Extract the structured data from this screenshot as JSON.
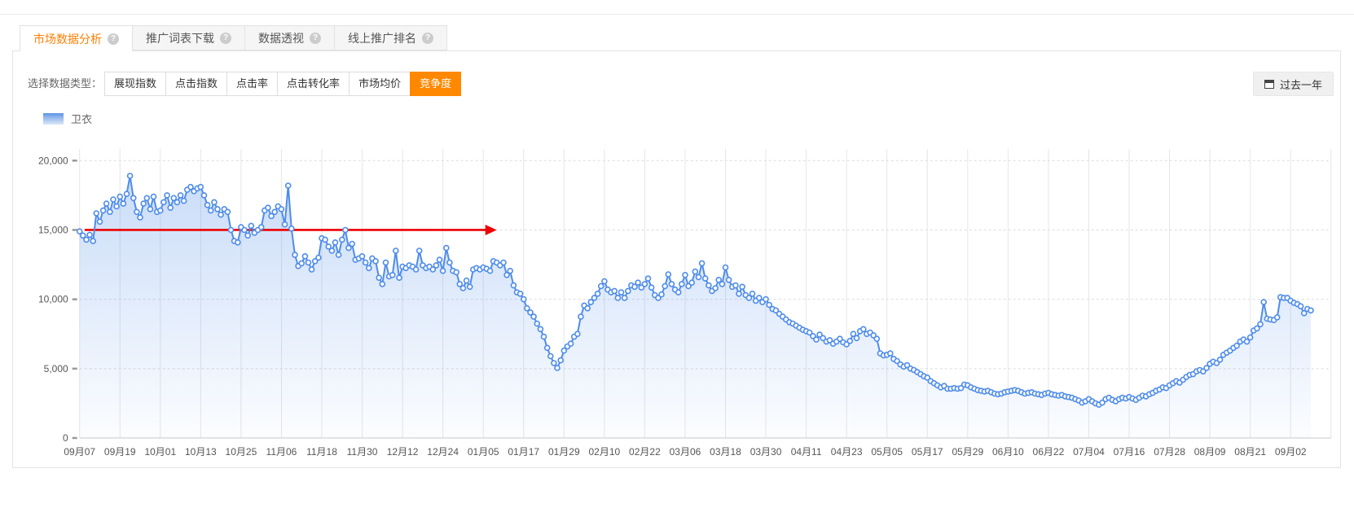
{
  "tabs": [
    {
      "label": "市场数据分析",
      "active": true
    },
    {
      "label": "推广词表下载",
      "active": false
    },
    {
      "label": "数据透视",
      "active": false
    },
    {
      "label": "线上推广排名",
      "active": false
    }
  ],
  "icons": {
    "help_glyph": "?"
  },
  "controls": {
    "label": "选择数据类型：",
    "type_buttons": [
      {
        "label": "展现指数",
        "active": false
      },
      {
        "label": "点击指数",
        "active": false
      },
      {
        "label": "点击率",
        "active": false
      },
      {
        "label": "点击转化率",
        "active": false
      },
      {
        "label": "市场均价",
        "active": false
      },
      {
        "label": "竞争度",
        "active": true
      }
    ],
    "date_range": {
      "label": "过去一年"
    }
  },
  "legend": {
    "series_label": "卫衣"
  },
  "colors": {
    "accent_orange": "#ff8800",
    "tab_active_text": "#ff7e00",
    "line_blue": "#4e8cea",
    "annotation_red": "#ee0000",
    "grid_vertical": "#e6e6e6",
    "grid_dashed": "#dcdcdc",
    "axis_text": "#555555"
  },
  "chart_data": {
    "type": "area",
    "title": "",
    "xlabel": "",
    "ylabel": "",
    "ylim": [
      0,
      20000
    ],
    "y_tick_labels": [
      "0",
      "5,000",
      "10,000",
      "15,000",
      "20,000"
    ],
    "y_tick_values": [
      0,
      5000,
      10000,
      15000,
      20000
    ],
    "x_tick_labels": [
      "09月07",
      "09月19",
      "10月01",
      "10月13",
      "10月25",
      "11月06",
      "11月18",
      "11月30",
      "12月12",
      "12月24",
      "01月05",
      "01月17",
      "01月29",
      "02月10",
      "02月22",
      "03月06",
      "03月18",
      "03月30",
      "04月11",
      "04月23",
      "05月05",
      "05月17",
      "05月29",
      "06月10",
      "06月22",
      "07月04",
      "07月16",
      "07月28",
      "08月09",
      "08月21",
      "09月02"
    ],
    "x_tick_every_days": 12,
    "grid": true,
    "legend_position": "top-left",
    "annotation_arrow": {
      "y": 15000,
      "from_day": 1.5,
      "to_day": 124,
      "color": "#ee0000"
    },
    "series": [
      {
        "name": "卫衣",
        "start_label": "09月07",
        "interval_days": 1,
        "values": [
          14900,
          14600,
          14300,
          14650,
          14200,
          16200,
          15600,
          16400,
          16900,
          16300,
          17200,
          16700,
          17400,
          16900,
          17600,
          18900,
          17300,
          16300,
          15900,
          16900,
          17300,
          16500,
          17400,
          16300,
          16400,
          17000,
          17500,
          16600,
          17300,
          17000,
          17500,
          17100,
          17900,
          18100,
          17800,
          18000,
          18100,
          17500,
          16800,
          16400,
          17000,
          16500,
          16100,
          16500,
          16300,
          15000,
          14200,
          14100,
          15200,
          15000,
          14600,
          15300,
          14800,
          15000,
          15200,
          16400,
          16600,
          16000,
          16300,
          16700,
          16500,
          15400,
          18200,
          15100,
          13200,
          12400,
          12600,
          13100,
          12650,
          12150,
          12750,
          13000,
          14400,
          14300,
          13800,
          13500,
          14100,
          13200,
          14300,
          15000,
          13700,
          14000,
          12850,
          12950,
          13100,
          12650,
          12250,
          12950,
          12750,
          11550,
          11100,
          12650,
          11650,
          11750,
          13500,
          11550,
          12350,
          12250,
          12450,
          12350,
          12150,
          13500,
          12450,
          12250,
          12350,
          12150,
          12450,
          12850,
          12050,
          13700,
          12650,
          12050,
          11950,
          11100,
          10800,
          11350,
          10900,
          12150,
          12250,
          12150,
          12300,
          12200,
          12050,
          12750,
          12650,
          12450,
          12650,
          11750,
          12050,
          11000,
          10500,
          10400,
          10000,
          9350,
          9050,
          8750,
          8250,
          7850,
          7300,
          6500,
          5900,
          5400,
          5050,
          5600,
          6300,
          6600,
          6800,
          7300,
          7500,
          8750,
          9550,
          9350,
          9800,
          10100,
          10400,
          10950,
          11300,
          10700,
          10500,
          10600,
          10100,
          10500,
          10100,
          10600,
          11000,
          10900,
          11200,
          10850,
          11100,
          11500,
          10850,
          10300,
          10100,
          10350,
          10950,
          11800,
          11100,
          10700,
          10500,
          11100,
          11750,
          10950,
          11200,
          12000,
          11600,
          12600,
          11500,
          11000,
          10600,
          10800,
          11400,
          11100,
          12300,
          11400,
          10900,
          11000,
          10400,
          10900,
          10300,
          10100,
          10400,
          9900,
          10100,
          9800,
          10000,
          9600,
          9300,
          9200,
          8950,
          8750,
          8550,
          8350,
          8250,
          8100,
          7950,
          7800,
          7700,
          7600,
          7350,
          7100,
          7450,
          7200,
          6950,
          7050,
          6800,
          6950,
          7150,
          6900,
          6750,
          7000,
          7500,
          7200,
          7700,
          7850,
          7500,
          7600,
          7400,
          7150,
          6100,
          5950,
          6000,
          6100,
          5700,
          5550,
          5300,
          5150,
          5250,
          5000,
          4900,
          4750,
          4600,
          4450,
          4350,
          4100,
          3950,
          3800,
          3650,
          3750,
          3550,
          3550,
          3600,
          3550,
          3600,
          3850,
          3800,
          3650,
          3550,
          3450,
          3400,
          3350,
          3400,
          3300,
          3200,
          3150,
          3200,
          3300,
          3350,
          3400,
          3450,
          3400,
          3300,
          3200,
          3250,
          3300,
          3200,
          3150,
          3100,
          3200,
          3250,
          3150,
          3100,
          3050,
          3100,
          3000,
          2950,
          2900,
          2800,
          2700,
          2550,
          2650,
          2800,
          2650,
          2500,
          2400,
          2550,
          2800,
          2900,
          2750,
          2650,
          2800,
          2900,
          2850,
          2950,
          2850,
          2750,
          2900,
          3050,
          3000,
          3150,
          3250,
          3400,
          3500,
          3650,
          3600,
          3800,
          3950,
          4100,
          4000,
          4200,
          4400,
          4550,
          4600,
          4800,
          4900,
          4800,
          5050,
          5350,
          5500,
          5400,
          5650,
          6000,
          6150,
          6300,
          6500,
          6650,
          6950,
          7100,
          6950,
          7250,
          7750,
          7900,
          8200,
          9800,
          8600,
          8550,
          8500,
          8700,
          10150,
          10100,
          10100,
          9900,
          9750,
          9650,
          9500,
          9000,
          9300,
          9200
        ]
      }
    ]
  }
}
